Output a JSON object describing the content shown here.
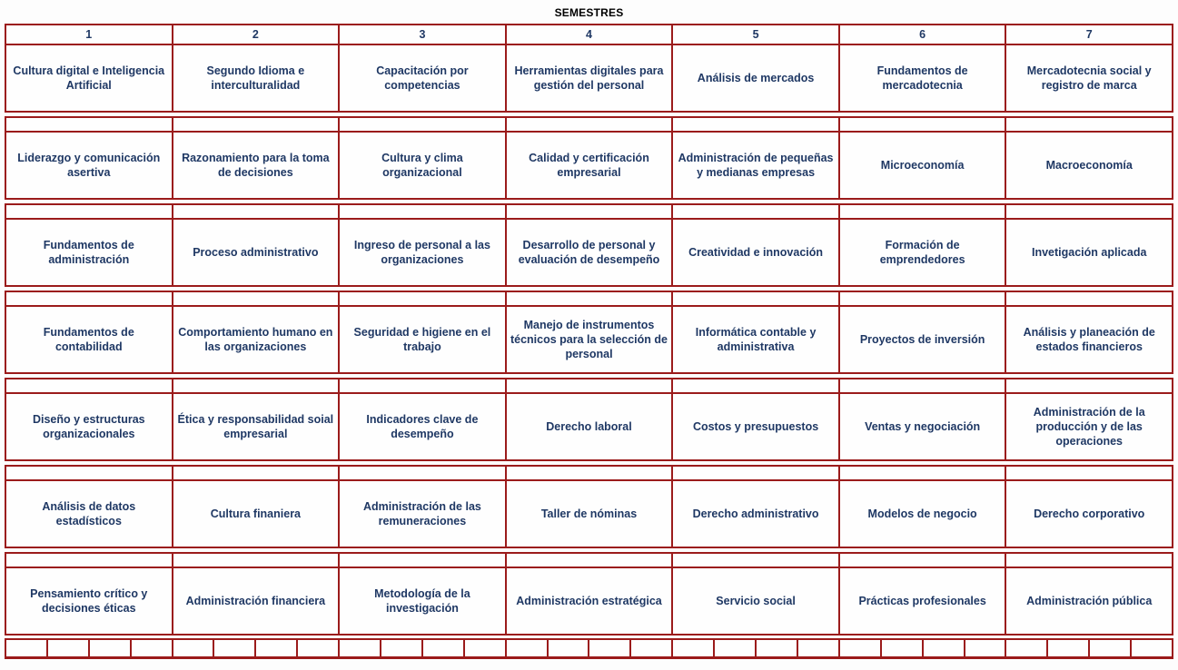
{
  "title": "SEMESTRES",
  "colors": {
    "border": "#9b1b1b",
    "course_text": "#1f3864",
    "title_text": "#000000",
    "background": "#fdfdfd"
  },
  "table": {
    "column_headers": [
      "1",
      "2",
      "3",
      "4",
      "5",
      "6",
      "7"
    ],
    "rows": [
      [
        "Cultura digital e Inteligencia Artificial",
        "Segundo Idioma e interculturalidad",
        "Capacitación por competencias",
        "Herramientas digitales para gestión del personal",
        "Análisis de mercados",
        "Fundamentos de mercadotecnia",
        "Mercadotecnia social y registro de marca"
      ],
      [
        "Liderazgo y comunicación asertiva",
        "Razonamiento para la toma de decisiones",
        "Cultura y clima organizacional",
        "Calidad y certificación empresarial",
        "Administración de pequeñas y medianas empresas",
        "Microeconomía",
        "Macroeconomía"
      ],
      [
        "Fundamentos de administración",
        "Proceso administrativo",
        "Ingreso de personal a las organizaciones",
        "Desarrollo de personal y evaluación de desempeño",
        "Creatividad e innovación",
        "Formación de emprendedores",
        "Invetigación aplicada"
      ],
      [
        "Fundamentos de contabilidad",
        "Comportamiento humano en las organizaciones",
        "Seguridad e higiene en el trabajo",
        "Manejo de instrumentos técnicos para la selección de personal",
        "Informática contable y administrativa",
        "Proyectos de inversión",
        "Análisis y planeación de estados financieros"
      ],
      [
        "Diseño y estructuras organizacionales",
        "Ética y responsabilidad soial empresarial",
        "Indicadores clave de desempeño",
        "Derecho laboral",
        "Costos y presupuestos",
        "Ventas y negociación",
        "Administración de la producción y de las operaciones"
      ],
      [
        "Análisis de datos estadísticos",
        "Cultura finaniera",
        "Administración de las remuneraciones",
        "Taller de nóminas",
        "Derecho administrativo",
        "Modelos de negocio",
        "Derecho corporativo"
      ],
      [
        "Pensamiento crítico y decisiones éticas",
        "Administración financiera",
        "Metodología de la investigación",
        "Administración estratégica",
        "Servicio social",
        "Prácticas profesionales",
        "Administración pública"
      ]
    ],
    "bottom_small_cells_per_column": 4,
    "bottom_small_cells_total": 28
  }
}
